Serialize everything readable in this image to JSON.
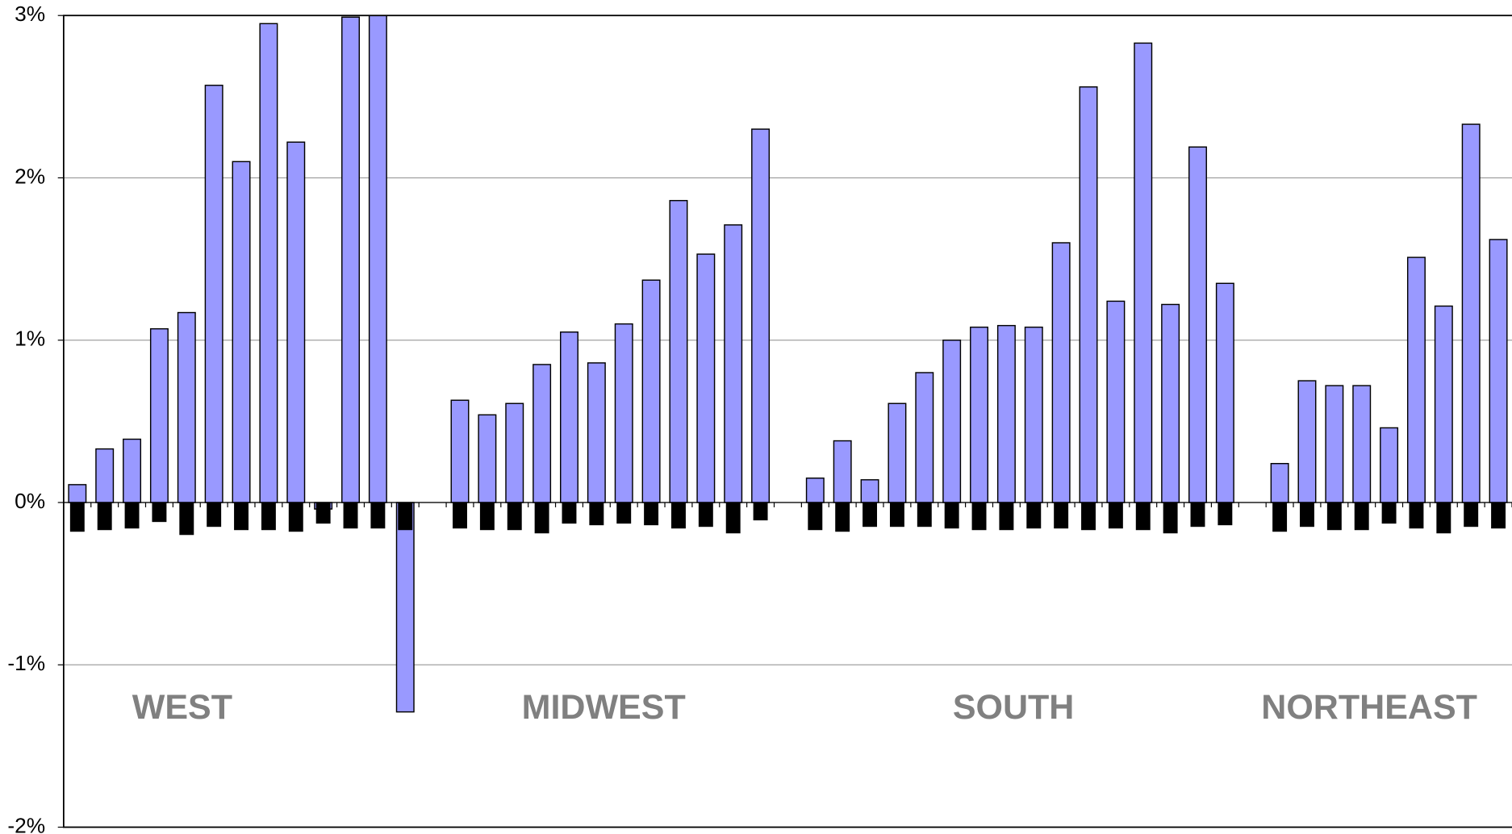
{
  "chart_data": {
    "type": "bar",
    "series": [
      {
        "color": "#9999ff",
        "values": [
          0.11,
          0.33,
          0.39,
          1.07,
          1.17,
          2.57,
          2.1,
          2.95,
          2.22,
          -0.04,
          2.99,
          3.0,
          -1.29,
          null,
          0.63,
          0.54,
          0.61,
          0.85,
          1.05,
          0.86,
          1.1,
          1.37,
          1.86,
          1.53,
          1.71,
          2.3,
          null,
          0.15,
          0.38,
          0.14,
          0.61,
          0.8,
          1.0,
          1.08,
          1.09,
          1.08,
          1.6,
          2.56,
          1.24,
          2.83,
          1.22,
          2.19,
          1.35,
          null,
          0.24,
          0.75,
          0.72,
          0.72,
          0.46,
          1.51,
          1.21,
          2.33,
          1.62
        ]
      },
      {
        "color": "#000000",
        "values": [
          -0.18,
          -0.17,
          -0.16,
          -0.12,
          -0.2,
          -0.15,
          -0.17,
          -0.17,
          -0.18,
          -0.13,
          -0.16,
          -0.16,
          -0.17,
          null,
          -0.16,
          -0.17,
          -0.17,
          -0.19,
          -0.13,
          -0.14,
          -0.13,
          -0.14,
          -0.16,
          -0.15,
          -0.19,
          -0.11,
          null,
          -0.17,
          -0.18,
          -0.15,
          -0.15,
          -0.15,
          -0.16,
          -0.17,
          -0.17,
          -0.16,
          -0.16,
          -0.17,
          -0.16,
          -0.17,
          -0.19,
          -0.15,
          -0.14,
          null,
          -0.18,
          -0.15,
          -0.17,
          -0.17,
          -0.13,
          -0.16,
          -0.19,
          -0.15,
          -0.16
        ]
      }
    ],
    "ylim": [
      -2,
      3
    ],
    "yticks": [
      {
        "value": -2,
        "label": "-2%"
      },
      {
        "value": -1,
        "label": "-1%"
      },
      {
        "value": 0,
        "label": "0%"
      },
      {
        "value": 1,
        "label": "1%"
      },
      {
        "value": 2,
        "label": "2%"
      },
      {
        "value": 3,
        "label": "3%"
      }
    ],
    "grid": true,
    "annotations": [
      "WEST",
      "MIDWEST",
      "SOUTH",
      "NORTHEAST"
    ]
  }
}
